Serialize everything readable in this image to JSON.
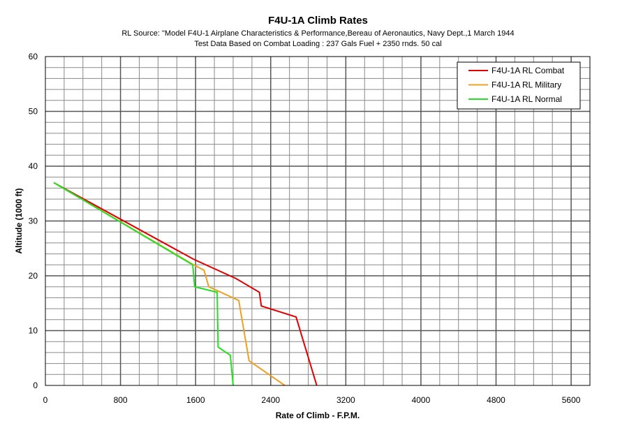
{
  "chart_data": {
    "type": "line",
    "title": "F4U-1A Climb Rates",
    "subtitle_lines": [
      "RL Source: \"Model F4U-1 Airplane Characteristics & Performance,Bereau of Aeronautics, Navy Dept.,1 March 1944",
      "Test Data Based on Combat Loading : 237 Gals Fuel + 2350 rnds. 50 cal"
    ],
    "xlabel": "Rate of Climb - F.P.M.",
    "ylabel": "Altitude (1000 ft)",
    "xlim": [
      0,
      5800
    ],
    "ylim": [
      0,
      60
    ],
    "xticks": [
      0,
      800,
      1600,
      2400,
      3200,
      4000,
      4800,
      5600
    ],
    "yticks": [
      0,
      10,
      20,
      30,
      40,
      50,
      60
    ],
    "grid": true,
    "legend_position": "top-right",
    "series": [
      {
        "name": "F4U-1A RL Combat",
        "color": "#e00000",
        "points": [
          [
            2890,
            0
          ],
          [
            2670,
            12.5
          ],
          [
            2300,
            14.5
          ],
          [
            2280,
            17
          ],
          [
            2030,
            19.5
          ],
          [
            1580,
            23
          ],
          [
            90,
            37
          ]
        ]
      },
      {
        "name": "F4U-1A RL Military",
        "color": "#f0a020",
        "points": [
          [
            2550,
            0
          ],
          [
            2170,
            4.5
          ],
          [
            2060,
            15.5
          ],
          [
            1740,
            18
          ],
          [
            1690,
            21
          ],
          [
            1580,
            22
          ],
          [
            90,
            37
          ]
        ]
      },
      {
        "name": "F4U-1A RL Normal",
        "color": "#22e022",
        "points": [
          [
            2000,
            0
          ],
          [
            1970,
            5.5
          ],
          [
            1840,
            7
          ],
          [
            1830,
            17
          ],
          [
            1590,
            18
          ],
          [
            1570,
            22
          ],
          [
            90,
            37
          ]
        ]
      }
    ]
  }
}
